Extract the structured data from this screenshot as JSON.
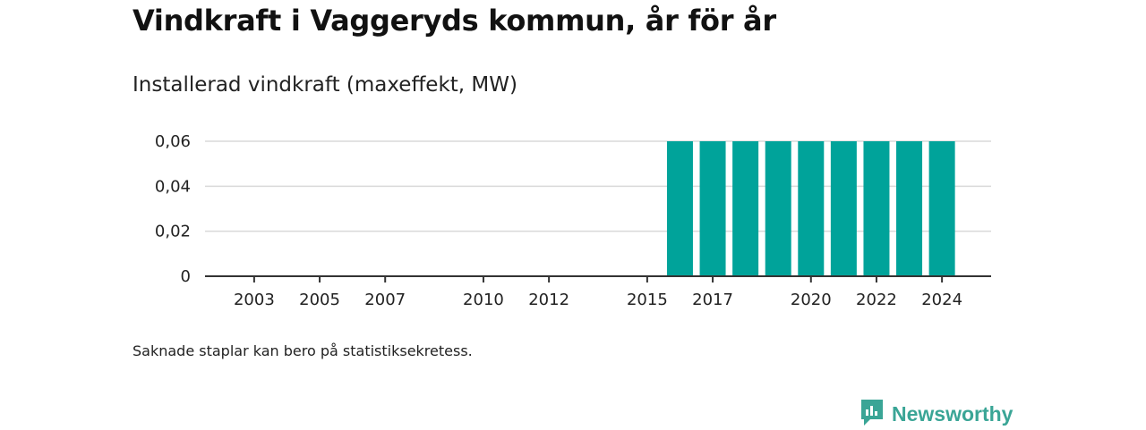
{
  "title": "Vindkraft i Vaggeryds kommun, år för år",
  "subtitle": "Installerad vindkraft (maxeffekt, MW)",
  "footnote": "Saknade staplar kan bero på statistiksekretess.",
  "brand": {
    "name": "Newsworthy",
    "icon": "newsworthy-logo-icon",
    "color": "#3aa596"
  },
  "chart_data": {
    "type": "bar",
    "title": "Vindkraft i Vaggeryds kommun, år för år",
    "ylabel": "Installerad vindkraft (maxeffekt, MW)",
    "xlabel": "",
    "ylim": [
      0,
      0.06
    ],
    "yticks": [
      {
        "value": 0,
        "label": "0"
      },
      {
        "value": 0.02,
        "label": "0,02"
      },
      {
        "value": 0.04,
        "label": "0,04"
      },
      {
        "value": 0.06,
        "label": "0,06"
      }
    ],
    "xlim": [
      2001.5,
      2025.5
    ],
    "xticks": [
      2003,
      2005,
      2007,
      2010,
      2012,
      2015,
      2017,
      2020,
      2022,
      2024
    ],
    "categories": [
      "2016",
      "2017",
      "2018",
      "2019",
      "2020",
      "2021",
      "2022",
      "2023",
      "2024"
    ],
    "values": [
      0.06,
      0.06,
      0.06,
      0.06,
      0.06,
      0.06,
      0.06,
      0.06,
      0.06
    ],
    "bar_color": "#00a39a",
    "grid": true,
    "legend": "none"
  }
}
